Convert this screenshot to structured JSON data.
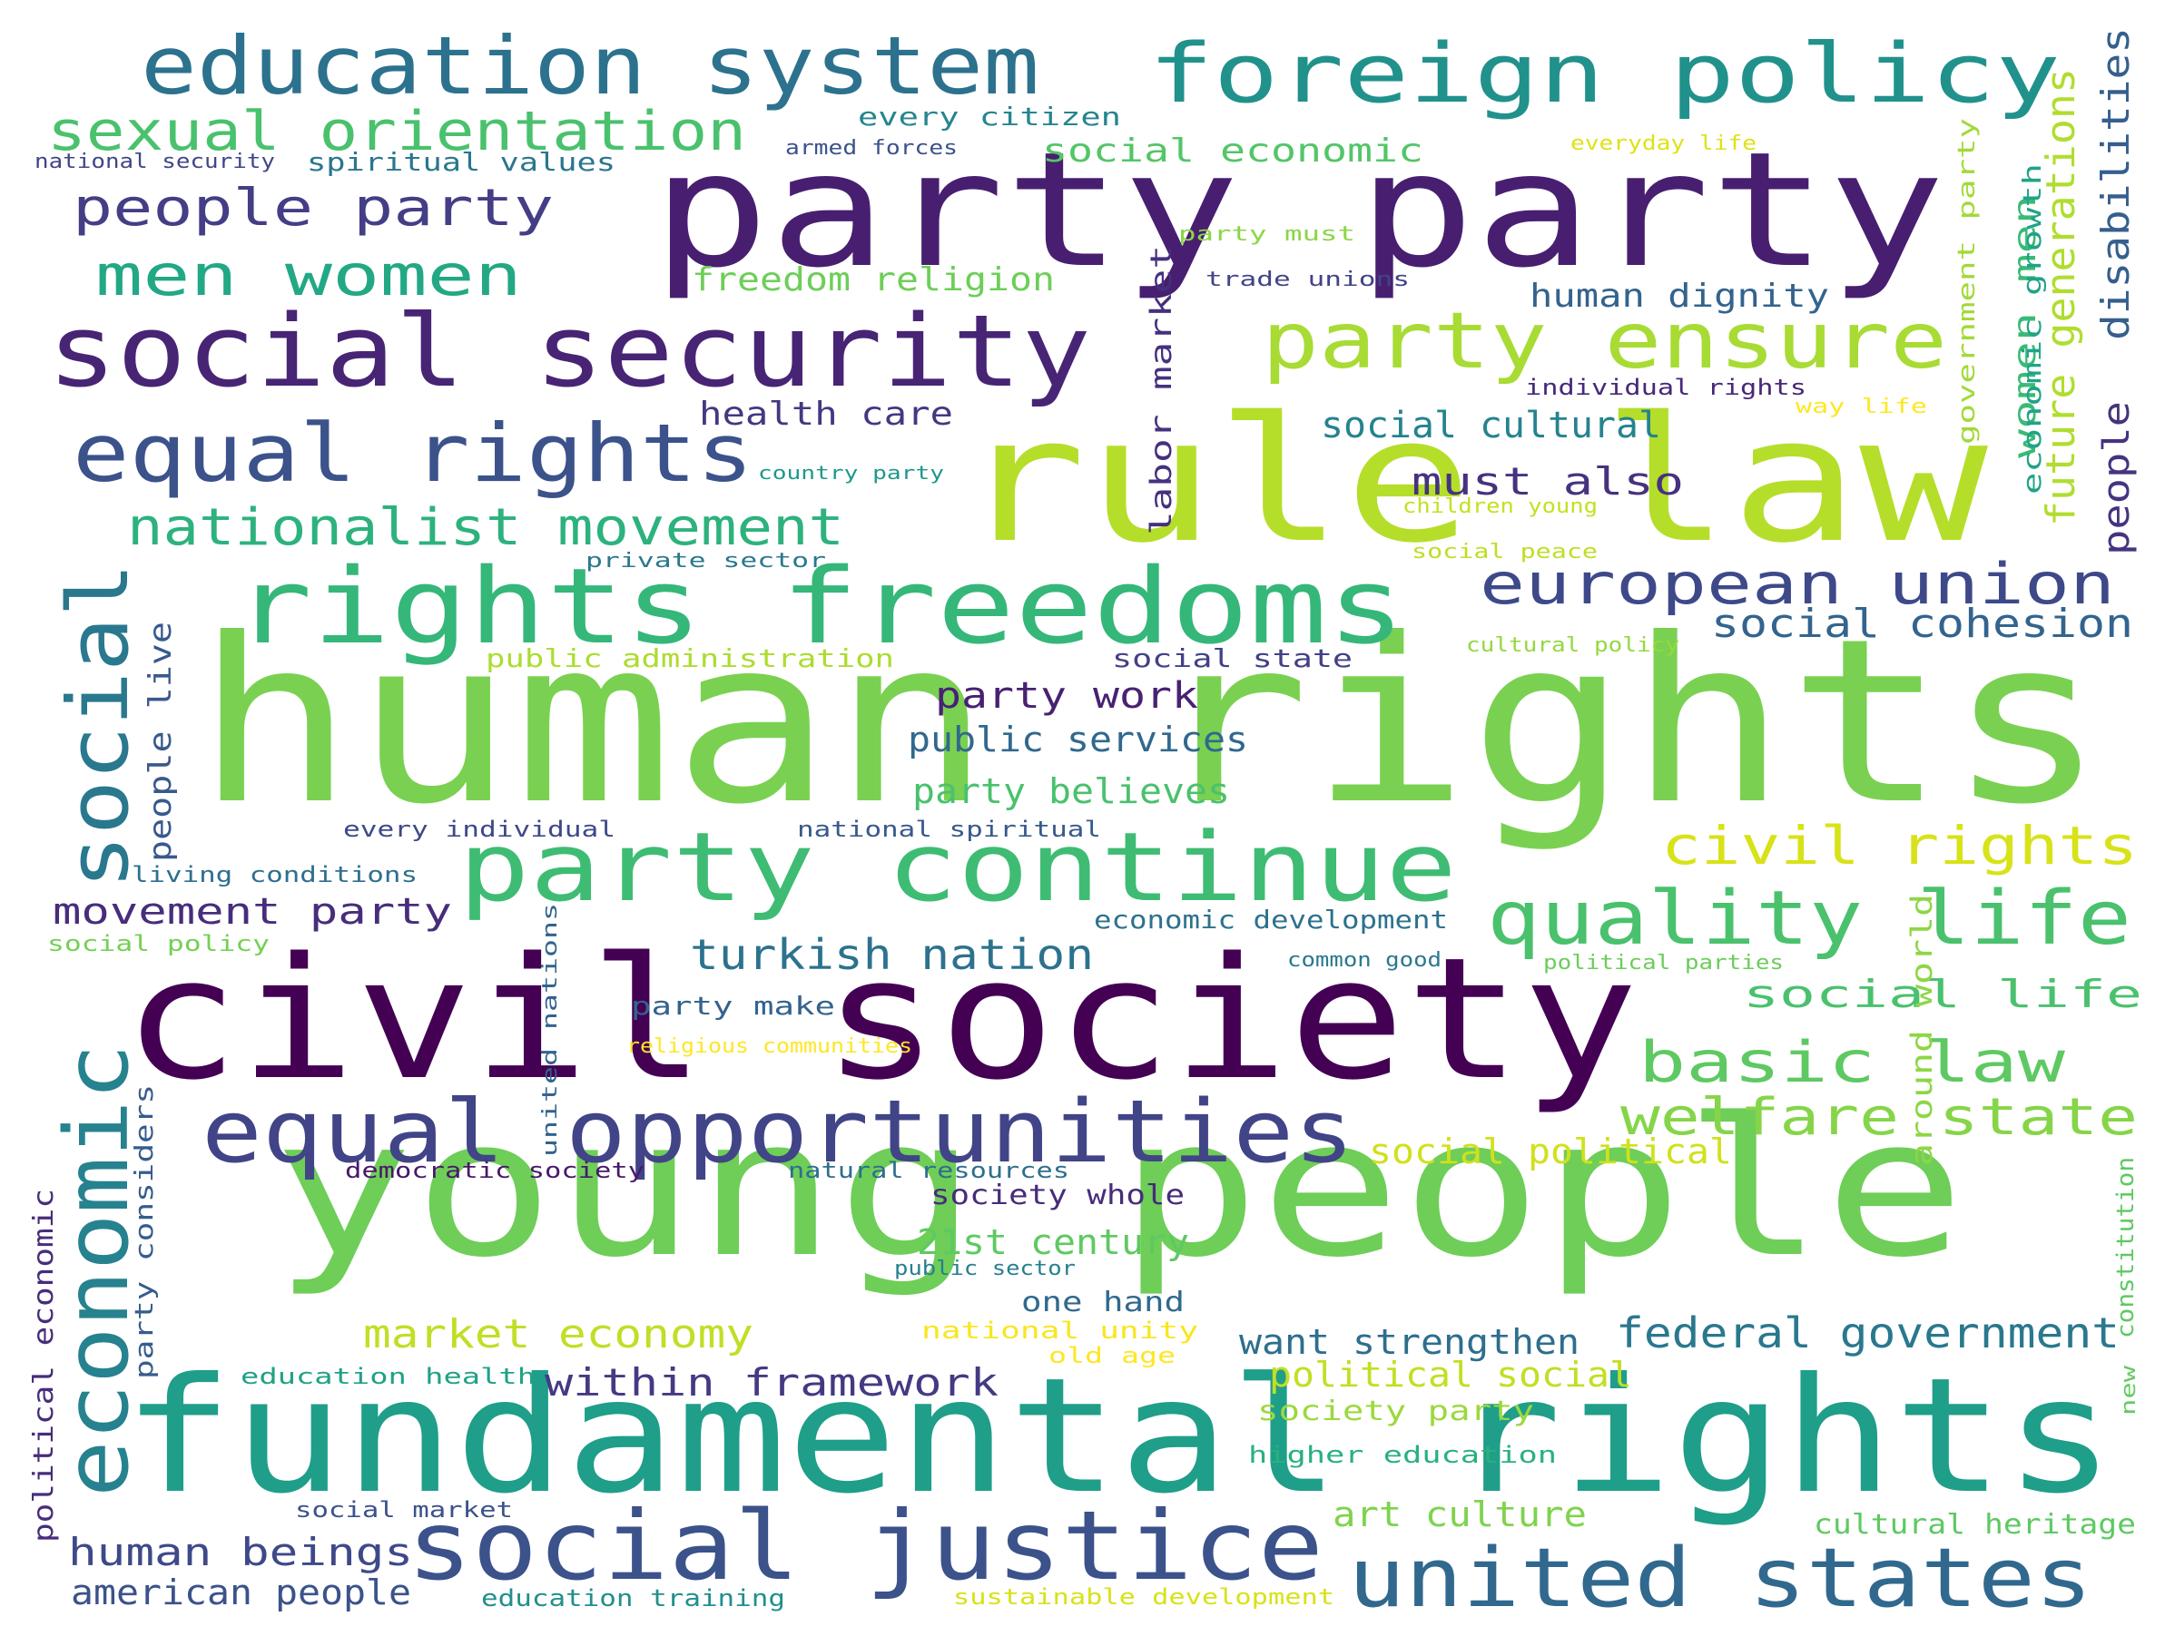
{
  "word_cloud": {
    "phrases": [
      {
        "text": "human rights",
        "color": "#7ad151"
      },
      {
        "text": "young people",
        "color": "#6ece58"
      },
      {
        "text": "civil society",
        "color": "#440154"
      },
      {
        "text": "fundamental rights",
        "color": "#1f9e89"
      },
      {
        "text": "rule law",
        "color": "#b5de2b"
      },
      {
        "text": "party party",
        "color": "#481f70"
      },
      {
        "text": "rights freedoms",
        "color": "#35b779"
      },
      {
        "text": "social security",
        "color": "#482475"
      },
      {
        "text": "party continue",
        "color": "#3fbc73"
      },
      {
        "text": "equal opportunities",
        "color": "#414487"
      },
      {
        "text": "social justice",
        "color": "#3b528b"
      },
      {
        "text": "united states",
        "color": "#31688e"
      },
      {
        "text": "education system",
        "color": "#2c728e"
      },
      {
        "text": "foreign policy",
        "color": "#21918c"
      },
      {
        "text": "equal rights",
        "color": "#3b528b"
      },
      {
        "text": "party ensure",
        "color": "#a8db34"
      },
      {
        "text": "quality life",
        "color": "#4ac16d"
      },
      {
        "text": "economic",
        "color": "#26828e"
      },
      {
        "text": "social",
        "color": "#2a788e"
      },
      {
        "text": "european union",
        "color": "#3e4989"
      },
      {
        "text": "sexual orientation",
        "color": "#4ac16d"
      },
      {
        "text": "men women",
        "color": "#22a884"
      },
      {
        "text": "people party",
        "color": "#433e85"
      },
      {
        "text": "nationalist movement",
        "color": "#2db27d"
      },
      {
        "text": "civil rights",
        "color": "#d8e219"
      },
      {
        "text": "basic law",
        "color": "#5ec962"
      },
      {
        "text": "welfare state",
        "color": "#86d549"
      },
      {
        "text": "federal government",
        "color": "#2a788e"
      },
      {
        "text": "market economy",
        "color": "#c0df25"
      },
      {
        "text": "within framework",
        "color": "#443a83"
      },
      {
        "text": "human beings",
        "color": "#3e4989"
      },
      {
        "text": "turkish nation",
        "color": "#2c728e"
      },
      {
        "text": "social cohesion",
        "color": "#32648e"
      },
      {
        "text": "must also",
        "color": "#46327e"
      },
      {
        "text": "movement party",
        "color": "#472d7b"
      },
      {
        "text": "party work",
        "color": "#482173"
      },
      {
        "text": "public services",
        "color": "#31688e"
      },
      {
        "text": "party believes",
        "color": "#4ac16d"
      },
      {
        "text": "want strengthen",
        "color": "#2e6e8e"
      },
      {
        "text": "american people",
        "color": "#3b528b"
      },
      {
        "text": "social life",
        "color": "#4ac16d"
      },
      {
        "text": "political social",
        "color": "#c2df23"
      },
      {
        "text": "art culture",
        "color": "#7fd34e"
      },
      {
        "text": "21st century",
        "color": "#5ec962"
      },
      {
        "text": "social political",
        "color": "#d0e11c"
      },
      {
        "text": "social cultural",
        "color": "#25838e"
      },
      {
        "text": "health care",
        "color": "#453781"
      },
      {
        "text": "human dignity",
        "color": "#33638d"
      },
      {
        "text": "social economic",
        "color": "#54c568"
      },
      {
        "text": "freedom religion",
        "color": "#6ece58"
      },
      {
        "text": "one hand",
        "color": "#30698e"
      },
      {
        "text": "society whole",
        "color": "#472c7a"
      },
      {
        "text": "economic development",
        "color": "#2d718e"
      },
      {
        "text": "people live",
        "color": "#38598c"
      },
      {
        "text": "labor market",
        "color": "#46307e"
      },
      {
        "text": "disabilities",
        "color": "#355f8d"
      },
      {
        "text": "future generations",
        "color": "#b0dd2f"
      },
      {
        "text": "people",
        "color": "#46337f"
      },
      {
        "text": "women men",
        "color": "#3aba76"
      },
      {
        "text": "economic growth",
        "color": "#20a386"
      },
      {
        "text": "government party",
        "color": "#a2da37"
      },
      {
        "text": "around world",
        "color": "#8ed645"
      },
      {
        "text": "constitution",
        "color": "#5ec962"
      },
      {
        "text": "new",
        "color": "#63cb5f"
      },
      {
        "text": "united nations",
        "color": "#33638d"
      },
      {
        "text": "party considers",
        "color": "#365c8d"
      },
      {
        "text": "political economic",
        "color": "#472d7b"
      },
      {
        "text": "every citizen",
        "color": "#25858e"
      },
      {
        "text": "armed forces",
        "color": "#3b528b"
      },
      {
        "text": "national security",
        "color": "#404688"
      },
      {
        "text": "spiritual values",
        "color": "#2a768e"
      },
      {
        "text": "everyday life",
        "color": "#dde318"
      },
      {
        "text": "party must",
        "color": "#8bd646"
      },
      {
        "text": "trade unions",
        "color": "#414487"
      },
      {
        "text": "individual rights",
        "color": "#482878"
      },
      {
        "text": "way life",
        "color": "#fde725"
      },
      {
        "text": "country party",
        "color": "#1f988b"
      },
      {
        "text": "children young",
        "color": "#c5e021"
      },
      {
        "text": "private sector",
        "color": "#29798e"
      },
      {
        "text": "social peace",
        "color": "#bddf26"
      },
      {
        "text": "public administration",
        "color": "#addc30"
      },
      {
        "text": "social state",
        "color": "#424086"
      },
      {
        "text": "cultural policy",
        "color": "#95d840"
      },
      {
        "text": "every individual",
        "color": "#3e4989"
      },
      {
        "text": "national spiritual",
        "color": "#38598c"
      },
      {
        "text": "living conditions",
        "color": "#2e6f8e"
      },
      {
        "text": "social policy",
        "color": "#75d054"
      },
      {
        "text": "common good",
        "color": "#2a788e"
      },
      {
        "text": "political parties",
        "color": "#6ccd5a"
      },
      {
        "text": "party make",
        "color": "#33638d"
      },
      {
        "text": "religious communities",
        "color": "#fde725"
      },
      {
        "text": "democratic society",
        "color": "#48186a"
      },
      {
        "text": "natural resources",
        "color": "#2e6e8e"
      },
      {
        "text": "public sector",
        "color": "#277f8e"
      },
      {
        "text": "national unity",
        "color": "#f8e621"
      },
      {
        "text": "old age",
        "color": "#fde725"
      },
      {
        "text": "education health",
        "color": "#1fa187"
      },
      {
        "text": "society party",
        "color": "#9bd93c"
      },
      {
        "text": "higher education",
        "color": "#2ab07f"
      },
      {
        "text": "social market",
        "color": "#3b528b"
      },
      {
        "text": "education training",
        "color": "#218f8d"
      },
      {
        "text": "sustainable development",
        "color": "#d8e219"
      },
      {
        "text": "cultural heritage",
        "color": "#5ec962"
      }
    ]
  }
}
